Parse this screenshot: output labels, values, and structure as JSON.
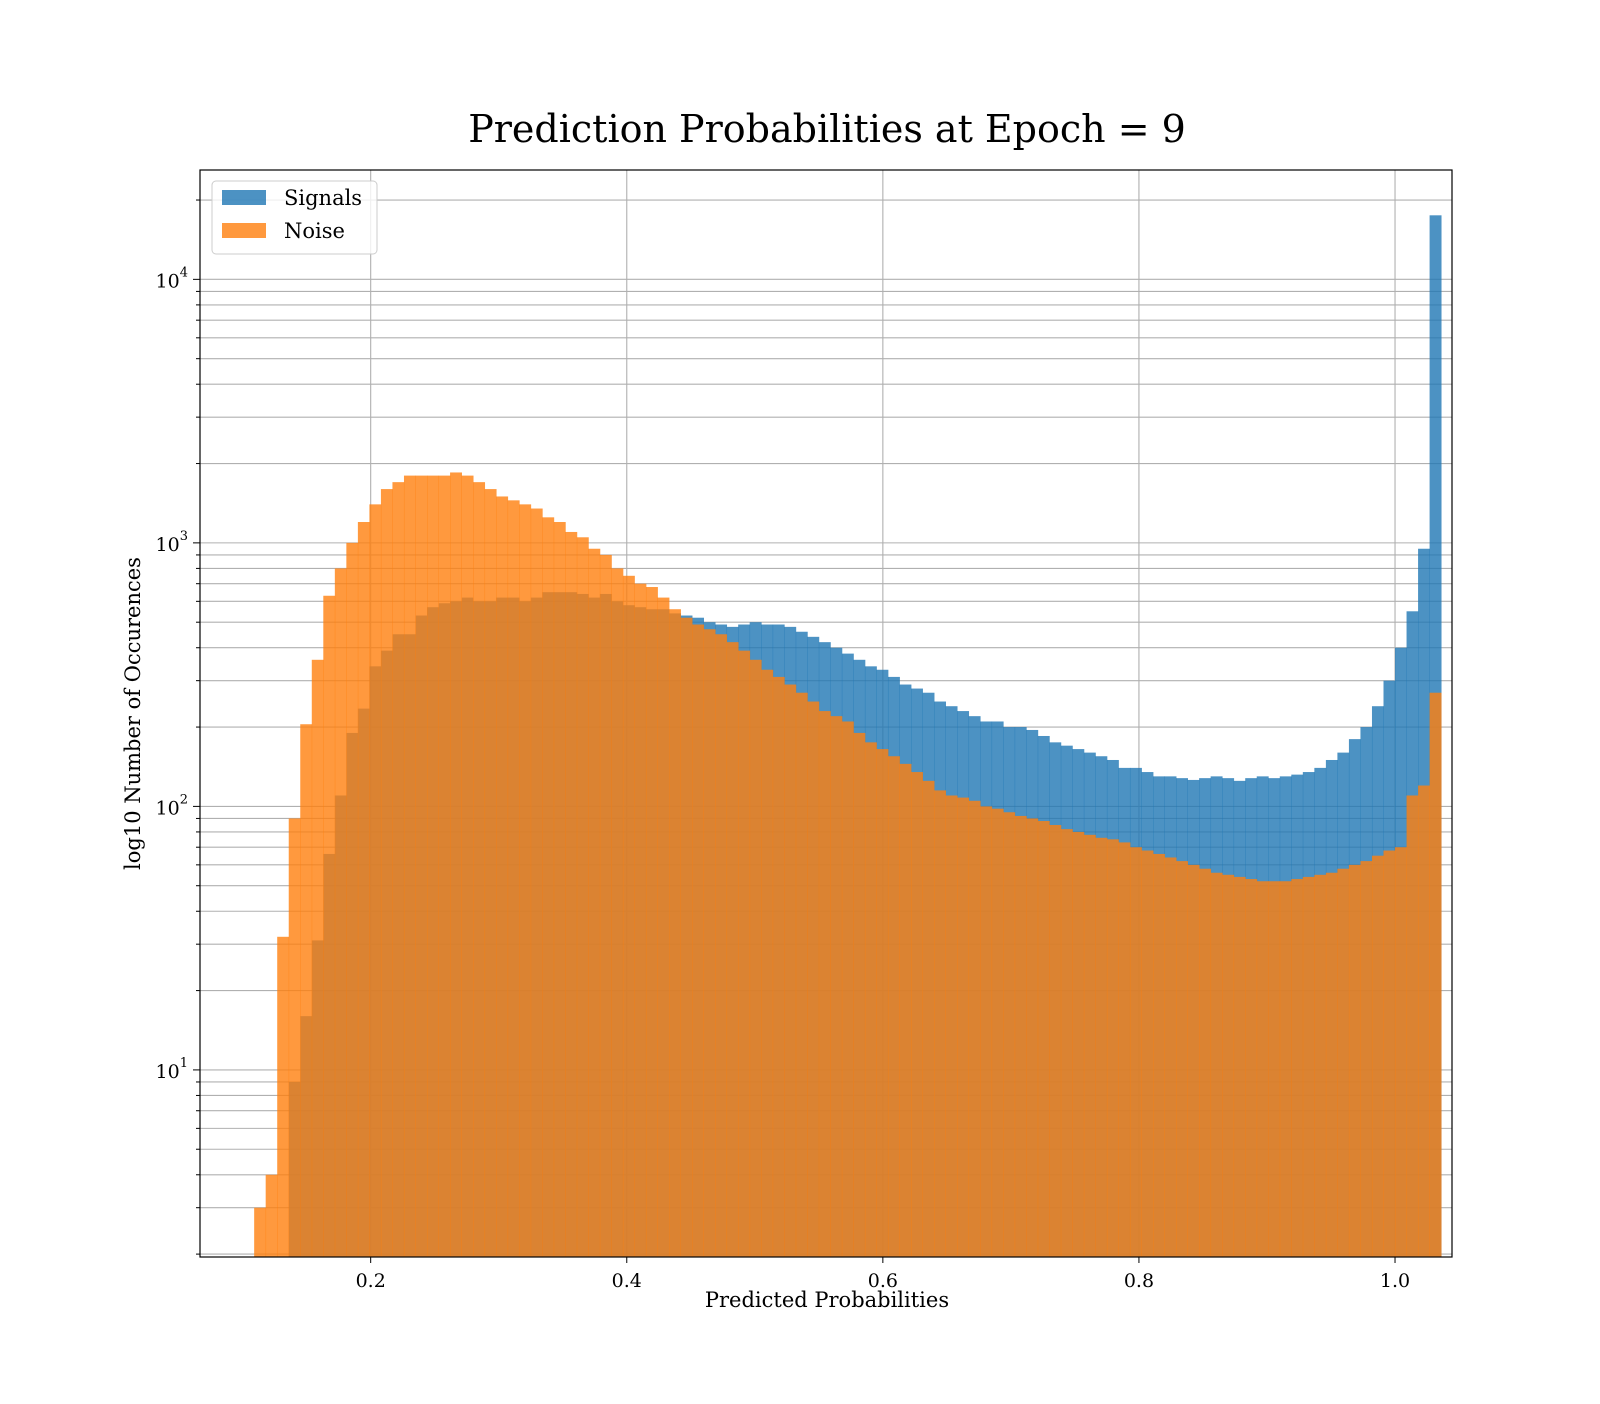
{
  "chart_data": {
    "type": "histogram",
    "title": "Prediction Probabilities at Epoch = 9",
    "xlabel": "Predicted Probabilities",
    "ylabel": "log10 Number of Occurences",
    "yscale": "log",
    "xlim": [
      0.0667,
      1.0445
    ],
    "ylim": [
      1.95,
      26000
    ],
    "grid": true,
    "legend_position": "upper-left",
    "x_ticks": [
      {
        "value": 0.2,
        "label": "0.2"
      },
      {
        "value": 0.4,
        "label": "0.4"
      },
      {
        "value": 0.6,
        "label": "0.6"
      },
      {
        "value": 0.8,
        "label": "0.8"
      },
      {
        "value": 1.0,
        "label": "1.0"
      }
    ],
    "y_ticks": [
      {
        "value": 10,
        "base": "10",
        "exp": "1"
      },
      {
        "value": 100,
        "base": "10",
        "exp": "2"
      },
      {
        "value": 1000,
        "base": "10",
        "exp": "3"
      },
      {
        "value": 10000,
        "base": "10",
        "exp": "4"
      }
    ],
    "bin_width": 0.009,
    "bin_start_signals": 0.136,
    "bin_start_noise": 0.109,
    "series": [
      {
        "name": "Signals",
        "color": "#1f77b4",
        "alpha": 0.8,
        "values": [
          9,
          16,
          31,
          66,
          110,
          190,
          235,
          340,
          390,
          450,
          450,
          530,
          570,
          590,
          600,
          620,
          600,
          600,
          620,
          620,
          600,
          620,
          650,
          650,
          650,
          640,
          620,
          640,
          600,
          580,
          570,
          560,
          560,
          540,
          530,
          520,
          500,
          490,
          480,
          490,
          500,
          490,
          490,
          480,
          460,
          440,
          420,
          400,
          380,
          360,
          340,
          330,
          310,
          290,
          280,
          270,
          250,
          240,
          230,
          220,
          210,
          210,
          200,
          200,
          195,
          185,
          175,
          170,
          165,
          160,
          155,
          150,
          140,
          140,
          135,
          130,
          130,
          128,
          126,
          128,
          130,
          128,
          125,
          128,
          130,
          128,
          130,
          132,
          135,
          140,
          150,
          160,
          180,
          200,
          240,
          300,
          400,
          550,
          950,
          17500
        ]
      },
      {
        "name": "Noise",
        "color": "#ff7f0e",
        "alpha": 0.8,
        "values": [
          3,
          4,
          32,
          90,
          205,
          360,
          630,
          800,
          1000,
          1200,
          1400,
          1600,
          1700,
          1800,
          1800,
          1800,
          1800,
          1850,
          1800,
          1700,
          1600,
          1500,
          1450,
          1400,
          1350,
          1250,
          1200,
          1100,
          1050,
          950,
          900,
          800,
          750,
          700,
          680,
          620,
          560,
          520,
          490,
          470,
          450,
          420,
          390,
          360,
          330,
          310,
          290,
          270,
          250,
          230,
          220,
          210,
          190,
          175,
          165,
          155,
          145,
          135,
          125,
          115,
          110,
          108,
          105,
          100,
          98,
          95,
          92,
          90,
          88,
          85,
          82,
          80,
          78,
          76,
          75,
          73,
          70,
          68,
          66,
          64,
          62,
          60,
          58,
          56,
          55,
          54,
          53,
          52,
          52,
          52,
          53,
          54,
          55,
          56,
          58,
          60,
          62,
          65,
          68,
          70,
          110,
          120,
          270
        ]
      }
    ]
  }
}
